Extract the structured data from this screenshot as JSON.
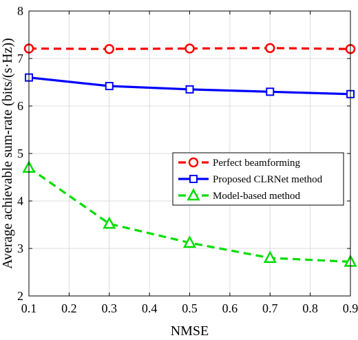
{
  "chart_data": {
    "type": "line",
    "title": "",
    "xlabel": "NMSE",
    "ylabel": "Average achievable sum-rate (bits/(s·Hz))",
    "xlim": [
      0.1,
      0.9
    ],
    "ylim": [
      2,
      8
    ],
    "xticks": [
      "0.1",
      "0.2",
      "0.3",
      "0.4",
      "0.5",
      "0.6",
      "0.7",
      "0.8",
      "0.9"
    ],
    "yticks": [
      "2",
      "3",
      "4",
      "5",
      "6",
      "7",
      "8"
    ],
    "grid": true,
    "legend_position": "center-right",
    "x": [
      0.1,
      0.3,
      0.5,
      0.7,
      0.9
    ],
    "series": [
      {
        "name": "Perfect beamforming",
        "values": [
          7.21,
          7.2,
          7.21,
          7.22,
          7.2
        ],
        "color": "#ff0000",
        "line_style": "dashed",
        "marker": "circle"
      },
      {
        "name": "Proposed CLRNet method",
        "values": [
          6.6,
          6.42,
          6.35,
          6.3,
          6.25
        ],
        "color": "#0000ff",
        "line_style": "solid",
        "marker": "square"
      },
      {
        "name": "Model-based method",
        "values": [
          4.7,
          3.52,
          3.12,
          2.8,
          2.72
        ],
        "color": "#00dd00",
        "line_style": "dashed",
        "marker": "triangle"
      }
    ]
  }
}
